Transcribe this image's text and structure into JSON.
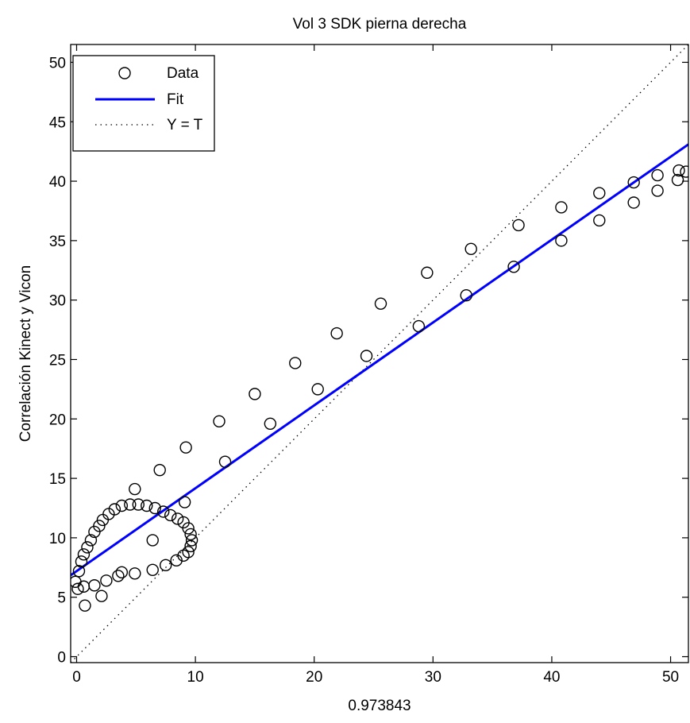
{
  "chart_data": {
    "type": "scatter",
    "title": "Vol 3 SDK pierna derecha",
    "xlabel": "0.973843",
    "ylabel": "Correlación Kinect y Vicon",
    "xlim": [
      -0.5,
      51.5
    ],
    "ylim": [
      -0.5,
      51.5
    ],
    "xticks": [
      0,
      10,
      20,
      30,
      40,
      50
    ],
    "yticks": [
      0,
      5,
      10,
      15,
      20,
      25,
      30,
      35,
      40,
      45,
      50
    ],
    "legend": {
      "placement": "top-left",
      "entries": [
        "Data",
        "Fit",
        "Y = T"
      ]
    },
    "series": [
      {
        "name": "Data",
        "kind": "markers",
        "marker": "open-circle",
        "color": "#000000",
        "points": [
          [
            -0.1,
            6.3
          ],
          [
            0.2,
            7.2
          ],
          [
            0.4,
            8.0
          ],
          [
            0.6,
            8.6
          ],
          [
            0.9,
            9.2
          ],
          [
            1.2,
            9.8
          ],
          [
            1.5,
            10.5
          ],
          [
            1.9,
            11.0
          ],
          [
            2.2,
            11.5
          ],
          [
            2.7,
            12.0
          ],
          [
            3.2,
            12.4
          ],
          [
            3.8,
            12.7
          ],
          [
            4.5,
            12.8
          ],
          [
            5.2,
            12.8
          ],
          [
            5.9,
            12.7
          ],
          [
            6.6,
            12.5
          ],
          [
            7.3,
            12.2
          ],
          [
            7.9,
            11.9
          ],
          [
            8.5,
            11.6
          ],
          [
            9.0,
            11.3
          ],
          [
            9.4,
            10.8
          ],
          [
            9.6,
            10.3
          ],
          [
            9.7,
            9.8
          ],
          [
            9.6,
            9.3
          ],
          [
            9.4,
            8.8
          ],
          [
            9.0,
            8.5
          ],
          [
            8.4,
            8.1
          ],
          [
            7.5,
            7.7
          ],
          [
            6.4,
            7.3
          ],
          [
            4.9,
            7.0
          ],
          [
            3.8,
            7.1
          ],
          [
            3.5,
            6.8
          ],
          [
            2.5,
            6.4
          ],
          [
            1.5,
            6.0
          ],
          [
            0.6,
            5.9
          ],
          [
            0.1,
            5.7
          ],
          [
            0.7,
            4.3
          ],
          [
            2.1,
            5.1
          ],
          [
            6.4,
            9.8
          ],
          [
            9.1,
            13.0
          ],
          [
            4.9,
            14.1
          ],
          [
            7.0,
            15.7
          ],
          [
            9.2,
            17.6
          ],
          [
            12.0,
            19.8
          ],
          [
            12.5,
            16.4
          ],
          [
            15.0,
            22.1
          ],
          [
            16.3,
            19.6
          ],
          [
            18.4,
            24.7
          ],
          [
            20.3,
            22.5
          ],
          [
            21.9,
            27.2
          ],
          [
            24.4,
            25.3
          ],
          [
            25.6,
            29.7
          ],
          [
            28.8,
            27.8
          ],
          [
            29.5,
            32.3
          ],
          [
            32.8,
            30.4
          ],
          [
            33.2,
            34.3
          ],
          [
            36.8,
            32.8
          ],
          [
            37.2,
            36.3
          ],
          [
            40.8,
            35.0
          ],
          [
            40.8,
            37.8
          ],
          [
            44.0,
            36.7
          ],
          [
            44.0,
            39.0
          ],
          [
            46.9,
            38.2
          ],
          [
            46.9,
            39.9
          ],
          [
            48.9,
            39.2
          ],
          [
            48.9,
            40.5
          ],
          [
            50.6,
            40.1
          ],
          [
            50.7,
            40.9
          ],
          [
            51.3,
            40.8
          ]
        ]
      },
      {
        "name": "Fit",
        "kind": "line",
        "color": "#0000ff",
        "x": [
          -0.5,
          51.5
        ],
        "y": [
          6.85,
          43.1
        ]
      },
      {
        "name": "Y = T",
        "kind": "dotted-line",
        "color": "#000000",
        "x": [
          -0.5,
          51.5
        ],
        "y": [
          -0.5,
          51.5
        ]
      }
    ]
  }
}
